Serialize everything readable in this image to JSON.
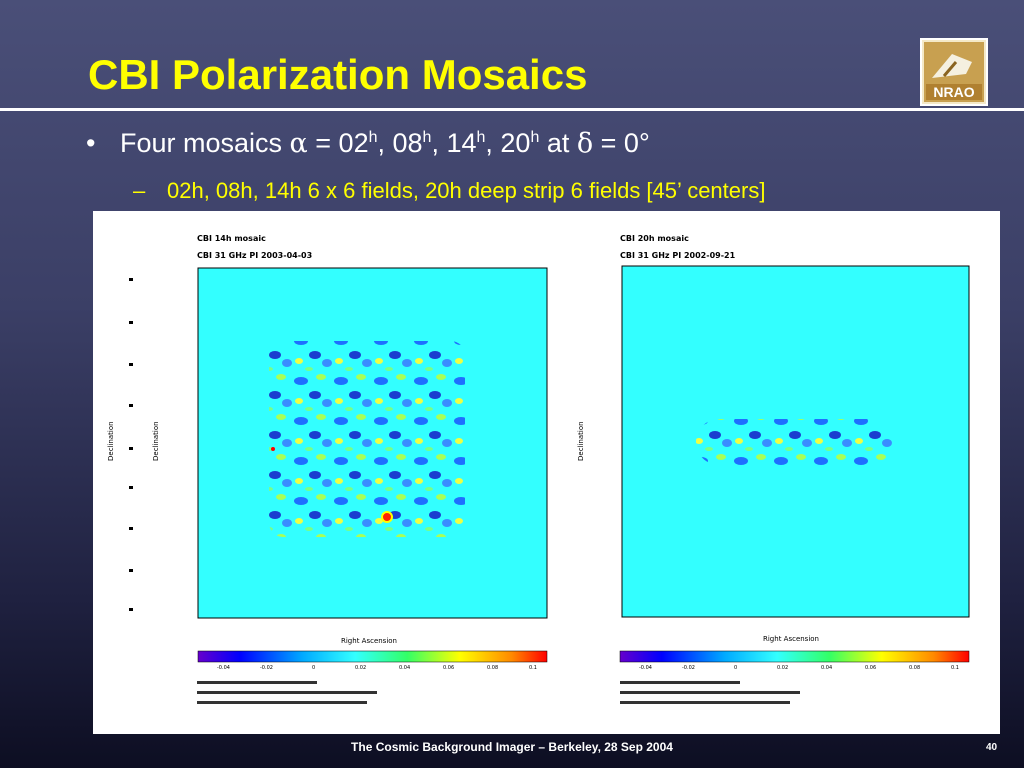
{
  "slide": {
    "title": "CBI Polarization Mosaics",
    "bullet1": {
      "text_before": "Four mosaics ",
      "alpha": "α",
      "eq1": " = 02",
      "h1": "h",
      "s2": ", 08",
      "h2": "h",
      "s3": ", 14",
      "h3": "h",
      "s4": ", 20",
      "h4": "h",
      "at": " at ",
      "delta": "δ",
      "eq2": " = 0°"
    },
    "bullet2": "02h, 08h, 14h 6 x 6 fields, 20h deep strip 6 fields [45’ centers]",
    "footer": "The Cosmic Background Imager – Berkeley, 28 Sep 2004",
    "page_number": "40"
  },
  "logo": {
    "text": "NRAO"
  },
  "left_map": {
    "title_line1": "CBI 14h mosaic",
    "title_line2": "CBI 31 GHz PI 2003-04-03",
    "ylabel": "Declination",
    "xlabel": "Right Ascension",
    "colorbar_ticks": [
      "-0.04",
      "-0.02",
      "0",
      "0.02",
      "0.04",
      "0.06",
      "0.08",
      "0.1"
    ]
  },
  "right_map": {
    "title_line1": "CBI 20h mosaic",
    "title_line2": "CBI 31 GHz PI 2002-09-21",
    "ylabel": "Declination",
    "xlabel": "Right Ascension",
    "colorbar_ticks": [
      "-0.04",
      "-0.02",
      "0",
      "0.02",
      "0.04",
      "0.06",
      "0.08",
      "0.1"
    ]
  },
  "colors": {
    "title": "#ffff00",
    "subbullet": "#ffff00",
    "map_background": "#33ffff"
  }
}
